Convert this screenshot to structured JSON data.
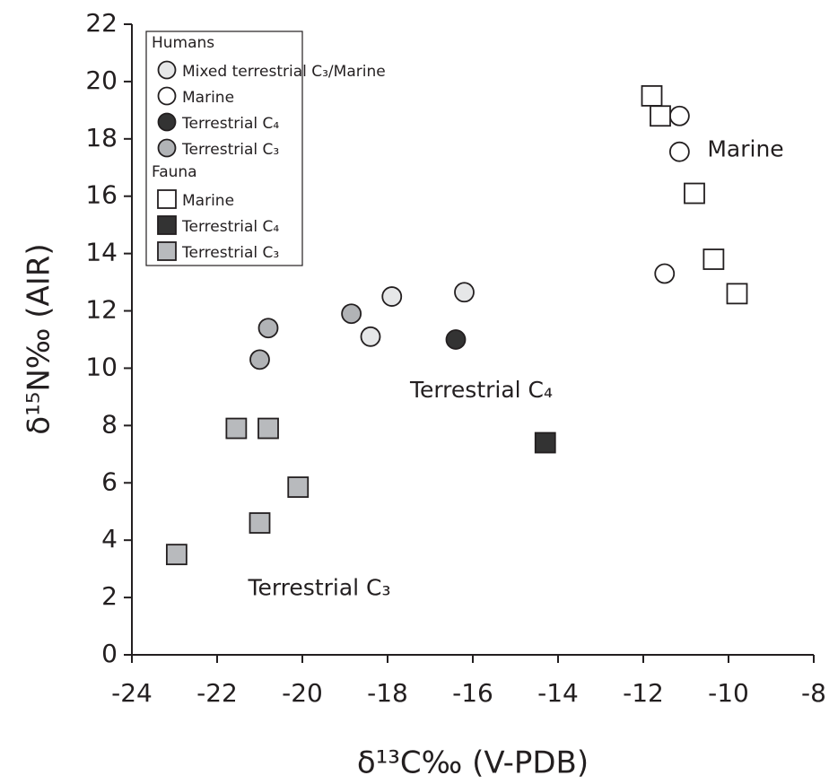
{
  "chart_data": {
    "type": "scatter",
    "xlabel": "δ¹³C‰ (V-PDB)",
    "ylabel": "δ¹⁵N‰ (AIR)",
    "xlim": [
      -24,
      -8
    ],
    "xticks": [
      -24,
      -22,
      -20,
      -18,
      -16,
      -14,
      -12,
      -10,
      -8
    ],
    "ylim": [
      0,
      22
    ],
    "yticks": [
      0,
      2,
      4,
      6,
      8,
      10,
      12,
      14,
      16,
      18,
      20,
      22
    ],
    "series_groups": [
      {
        "name": "Humans",
        "series": [
          {
            "name": "Mixed terrestrial C₃/Marine",
            "marker": "circle",
            "color": "#e6e7e8",
            "x": [
              -18.4,
              -17.9,
              -16.2
            ],
            "values": [
              11.1,
              12.5,
              12.65
            ]
          },
          {
            "name": "Marine",
            "marker": "circle",
            "color": "#ffffff",
            "x": [
              -11.15,
              -11.15,
              -11.5
            ],
            "values": [
              18.8,
              17.55,
              13.3
            ]
          },
          {
            "name": "Terrestrial C₄",
            "marker": "circle",
            "color": "#333333",
            "x": [
              -16.4
            ],
            "values": [
              11.0
            ]
          },
          {
            "name": "Terrestrial C₃",
            "marker": "circle",
            "color": "#b1b3b6",
            "x": [
              -20.8,
              -21.0,
              -18.85
            ],
            "values": [
              11.4,
              10.3,
              11.9
            ]
          }
        ]
      },
      {
        "name": "Fauna",
        "series": [
          {
            "name": "Marine",
            "marker": "square",
            "color": "#ffffff",
            "x": [
              -11.8,
              -11.6,
              -10.8,
              -10.35,
              -9.8
            ],
            "values": [
              19.5,
              18.8,
              16.1,
              13.8,
              12.6
            ]
          },
          {
            "name": "Terrestrial C₄",
            "marker": "square",
            "color": "#333333",
            "x": [
              -14.3
            ],
            "values": [
              7.4
            ]
          },
          {
            "name": "Terrestrial C₃",
            "marker": "square",
            "color": "#b8babd",
            "x": [
              -22.95,
              -21.55,
              -20.8,
              -21.0,
              -20.1
            ],
            "values": [
              3.5,
              7.9,
              7.9,
              4.6,
              5.85
            ]
          }
        ]
      }
    ],
    "annotations": [
      {
        "text": "Marine",
        "x": -9.6,
        "y": 17.6
      },
      {
        "text": "Terrestrial C₄",
        "x": -15.8,
        "y": 9.2
      },
      {
        "text": "Terrestrial C₃",
        "x": -19.6,
        "y": 2.3
      }
    ]
  }
}
